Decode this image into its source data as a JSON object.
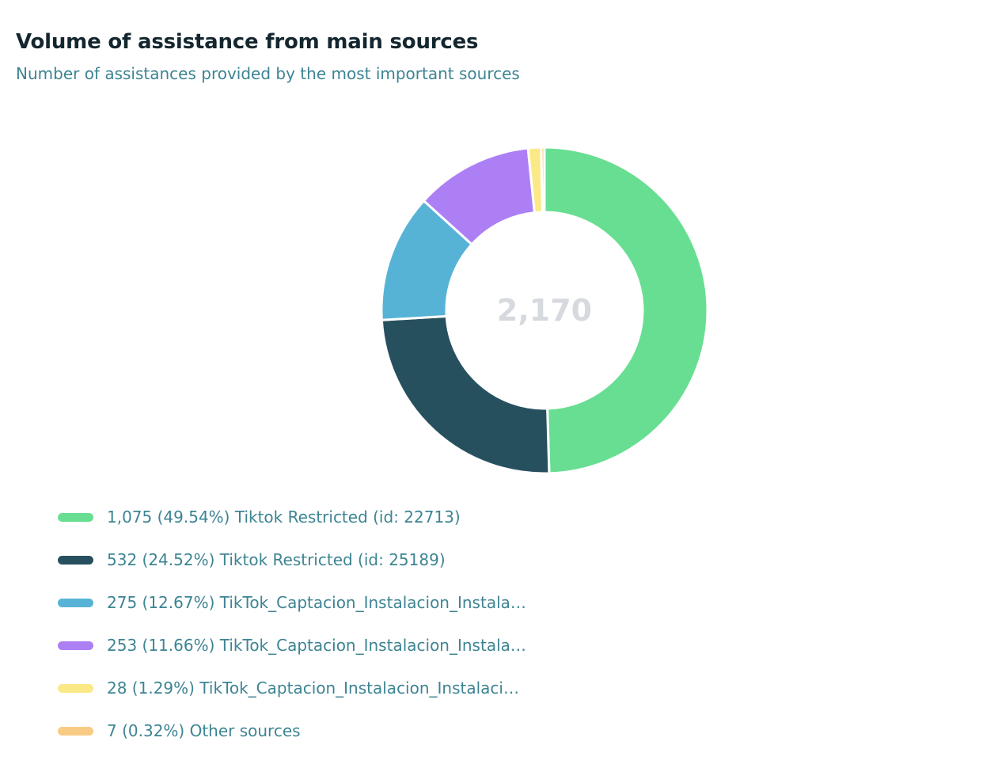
{
  "header": {
    "title": "Volume of assistance from main sources",
    "subtitle": "Number of assistances provided by the most important sources"
  },
  "chart_data": {
    "type": "pie",
    "title": "Volume of assistance from main sources",
    "subtitle": "Number of assistances provided by the most important sources",
    "donut": true,
    "center_label": "2,170",
    "total": 2170,
    "legend_position": "bottom-left",
    "slices": [
      {
        "value": 1075,
        "percent": 49.54,
        "label": "Tiktok Restricted (id: 22713)",
        "legend_text": "1,075 (49.54%) Tiktok Restricted (id: 22713)",
        "color": "#68de92"
      },
      {
        "value": 532,
        "percent": 24.52,
        "label": "Tiktok Restricted (id: 25189)",
        "legend_text": "532 (24.52%) Tiktok Restricted (id: 25189)",
        "color": "#27505f"
      },
      {
        "value": 275,
        "percent": 12.67,
        "label": "TikTok_Captacion_Instalacion_Instala…",
        "legend_text": "275 (12.67%) TikTok_Captacion_Instalacion_Instala…",
        "color": "#56b3d6"
      },
      {
        "value": 253,
        "percent": 11.66,
        "label": "TikTok_Captacion_Instalacion_Instala…",
        "legend_text": "253 (11.66%) TikTok_Captacion_Instalacion_Instala…",
        "color": "#ad7ff5"
      },
      {
        "value": 28,
        "percent": 1.29,
        "label": "TikTok_Captacion_Instalacion_Instalaci…",
        "legend_text": "28 (1.29%) TikTok_Captacion_Instalacion_Instalaci…",
        "color": "#fbe987"
      },
      {
        "value": 7,
        "percent": 0.32,
        "label": "Other sources",
        "legend_text": "7 (0.32%) Other sources",
        "color": "#f8cb85"
      }
    ]
  }
}
